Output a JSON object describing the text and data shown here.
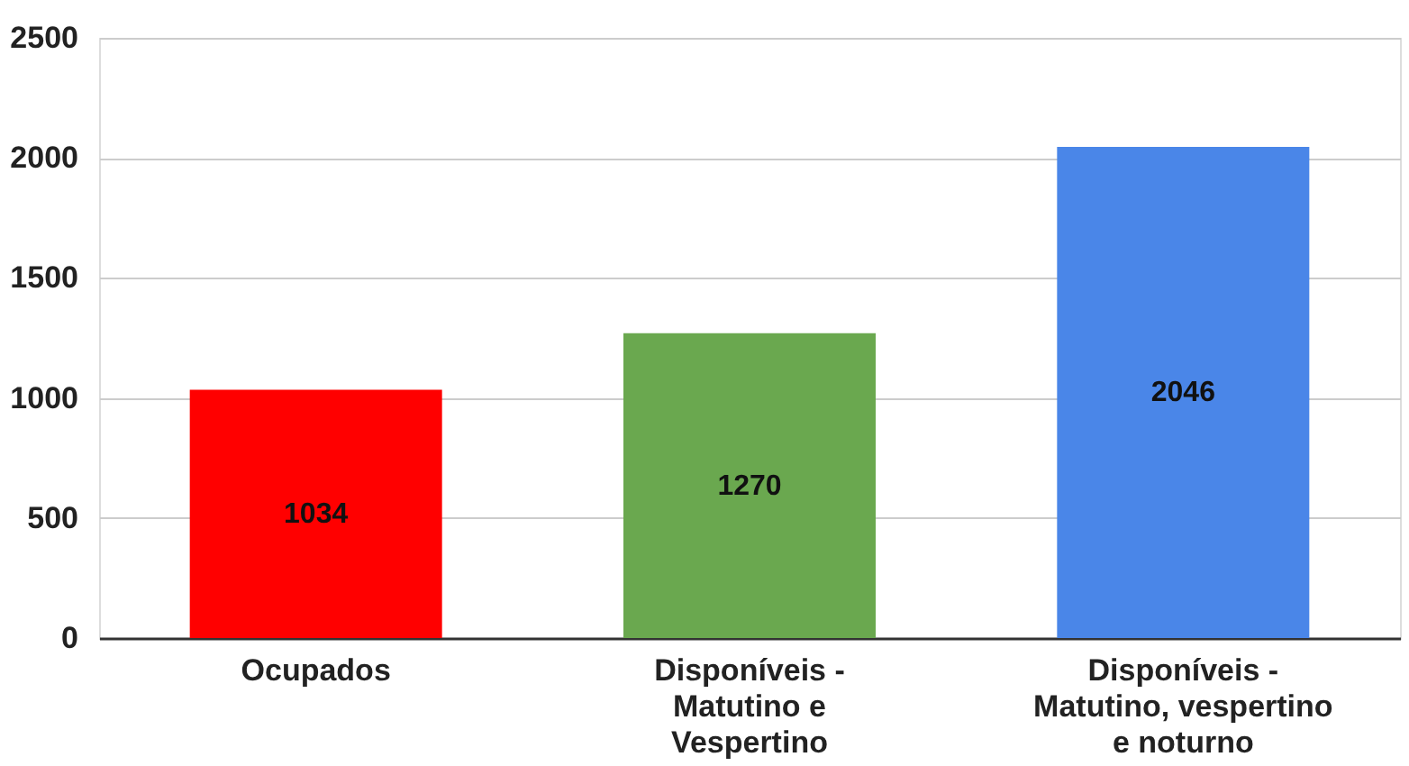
{
  "chart_data": {
    "type": "bar",
    "categories": [
      "Ocupados",
      "Disponíveis - Matutino e Vespertino",
      "Disponíveis - Matutino, vespertino e noturno"
    ],
    "values": [
      1034,
      1270,
      2046
    ],
    "colors": [
      "#ff0000",
      "#6aa84f",
      "#4a86e8"
    ],
    "ylim": [
      0,
      2500
    ],
    "yticks": [
      0,
      500,
      1000,
      1500,
      2000,
      2500
    ],
    "grid": "y",
    "data_labels": true
  }
}
